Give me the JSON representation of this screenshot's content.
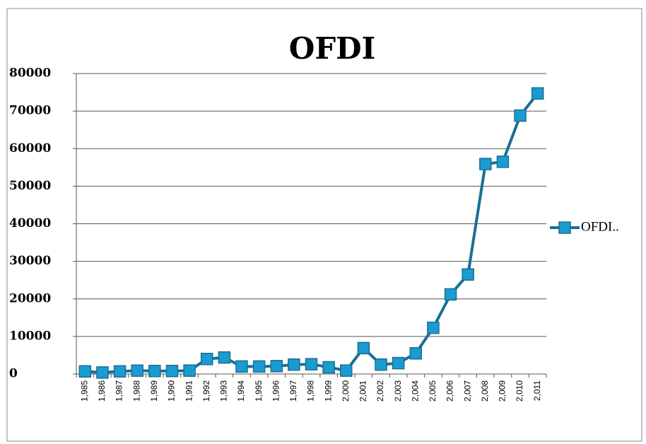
{
  "chart_data": {
    "type": "line",
    "title": "OFDI",
    "categories": [
      "1,985",
      "1,986",
      "1,987",
      "1,988",
      "1,989",
      "1,990",
      "1,991",
      "1,992",
      "1,993",
      "1,994",
      "1,995",
      "1,996",
      "1,997",
      "1,998",
      "1,999",
      "2,000",
      "2,001",
      "2,002",
      "2,003",
      "2,004",
      "2,005",
      "2,006",
      "2,007",
      "2,008",
      "2,009",
      "2,010",
      "2,011"
    ],
    "series": [
      {
        "name": "OFDI..",
        "color": "#1a6f94",
        "marker_color": "#1a9bd1",
        "values": [
          700,
          400,
          700,
          900,
          800,
          800,
          900,
          4000,
          4400,
          2000,
          2000,
          2100,
          2500,
          2600,
          1800,
          900,
          6900,
          2500,
          2900,
          5500,
          12300,
          21200,
          26500,
          55900,
          56500,
          68800,
          74700
        ]
      }
    ],
    "ylim": [
      0,
      80000
    ],
    "yticks": [
      0,
      10000,
      20000,
      30000,
      40000,
      50000,
      60000,
      70000,
      80000
    ],
    "grid": true,
    "legend": "right"
  }
}
